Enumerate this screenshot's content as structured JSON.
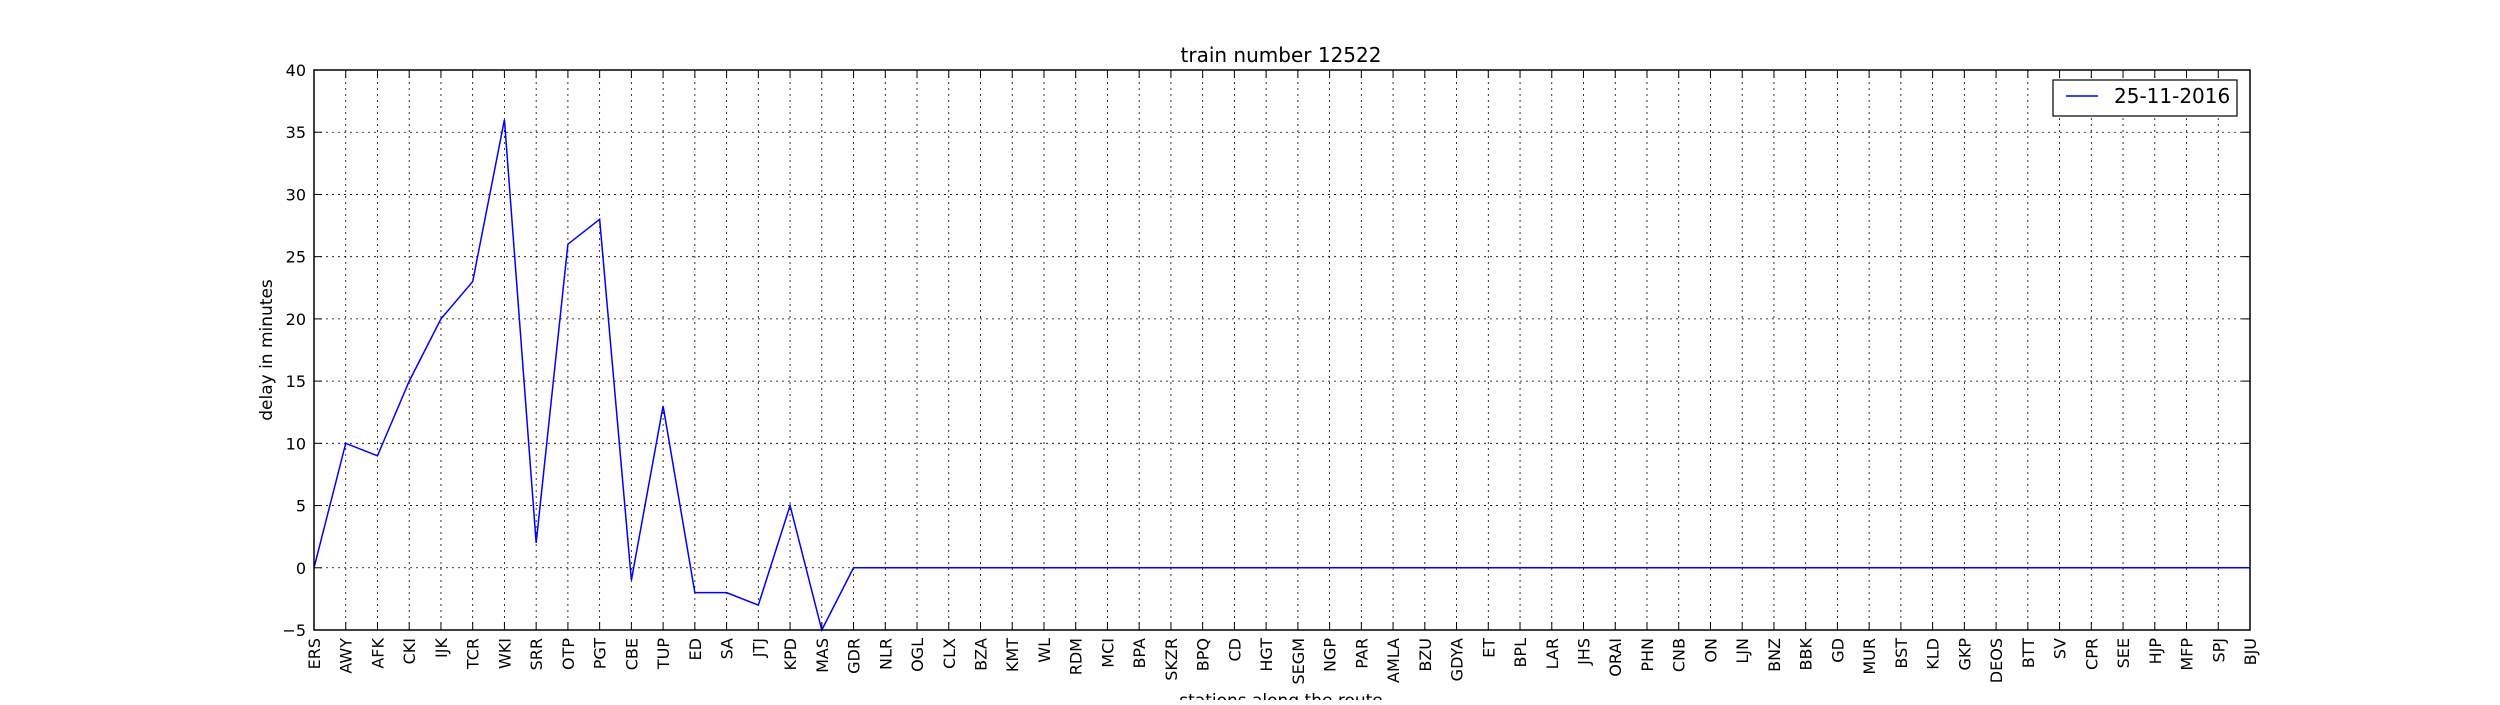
{
  "chart_data": {
    "type": "line",
    "title": "train number 12522",
    "xlabel": "stations along the route",
    "ylabel": "delay in minutes",
    "ylim": [
      -5,
      40
    ],
    "yticks": [
      "−5",
      "0",
      "5",
      "10",
      "15",
      "20",
      "25",
      "30",
      "35",
      "40"
    ],
    "grid": true,
    "legend_position": "top-right",
    "categories": [
      "ERS",
      "AWY",
      "AFK",
      "CKI",
      "IJK",
      "TCR",
      "WKI",
      "SRR",
      "OTP",
      "PGT",
      "CBE",
      "TUP",
      "ED",
      "SA",
      "JTJ",
      "KPD",
      "MAS",
      "GDR",
      "NLR",
      "OGL",
      "CLX",
      "BZA",
      "KMT",
      "WL",
      "RDM",
      "MCI",
      "BPA",
      "SKZR",
      "BPQ",
      "CD",
      "HGT",
      "SEGM",
      "NGP",
      "PAR",
      "AMLA",
      "BZU",
      "GDYA",
      "ET",
      "BPL",
      "LAR",
      "JHS",
      "ORAI",
      "PHN",
      "CNB",
      "ON",
      "LJN",
      "BNZ",
      "BBK",
      "GD",
      "MUR",
      "BST",
      "KLD",
      "GKP",
      "DEOS",
      "BTT",
      "SV",
      "CPR",
      "SEE",
      "HJP",
      "MFP",
      "SPJ",
      "BJU"
    ],
    "series": [
      {
        "name": "25-11-2016",
        "color": "#0000ff",
        "values": [
          0,
          10,
          9,
          15,
          20,
          23,
          36,
          2,
          26,
          28,
          -1,
          13,
          -2,
          -2,
          -3,
          5,
          -5,
          0,
          0,
          0,
          0,
          0,
          0,
          0,
          0,
          0,
          0,
          0,
          0,
          0,
          0,
          0,
          0,
          0,
          0,
          0,
          0,
          0,
          0,
          0,
          0,
          0,
          0,
          0,
          0,
          0,
          0,
          0,
          0,
          0,
          0,
          0,
          0,
          0,
          0,
          0,
          0,
          0,
          0,
          0,
          0,
          0
        ]
      }
    ]
  }
}
